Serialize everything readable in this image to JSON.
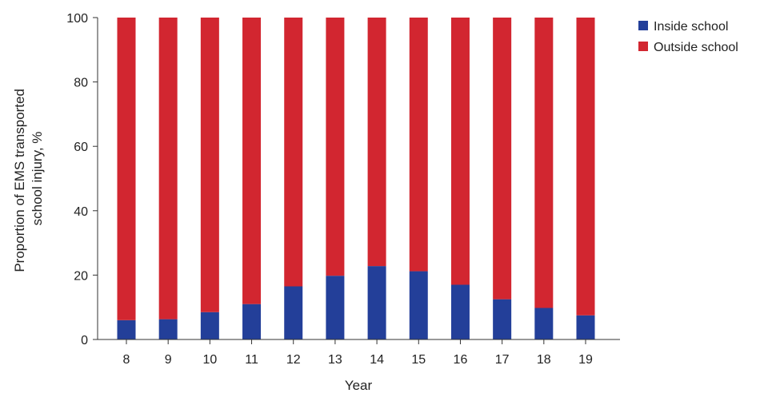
{
  "chart_data": {
    "type": "bar",
    "stacked": true,
    "categories": [
      "8",
      "9",
      "10",
      "11",
      "12",
      "13",
      "14",
      "15",
      "16",
      "17",
      "18",
      "19"
    ],
    "series": [
      {
        "name": "Inside school",
        "color": "#233f99",
        "values": [
          6,
          6.3,
          8.5,
          11,
          16.5,
          19.8,
          22.8,
          21.2,
          17,
          12.5,
          9.8,
          7.5
        ]
      },
      {
        "name": "Outside school",
        "color": "#d22630",
        "values": [
          94,
          93.7,
          91.5,
          89,
          83.5,
          80.2,
          77.2,
          78.8,
          83,
          87.5,
          90.2,
          92.5
        ]
      }
    ],
    "title": "",
    "xlabel": "Year",
    "ylabel_lines": [
      "Proportion of EMS transported",
      "school injury, %"
    ],
    "ylim": [
      0,
      100
    ],
    "yticks": [
      0,
      20,
      40,
      60,
      80,
      100
    ],
    "grid": false,
    "legend_position": "top-right"
  }
}
